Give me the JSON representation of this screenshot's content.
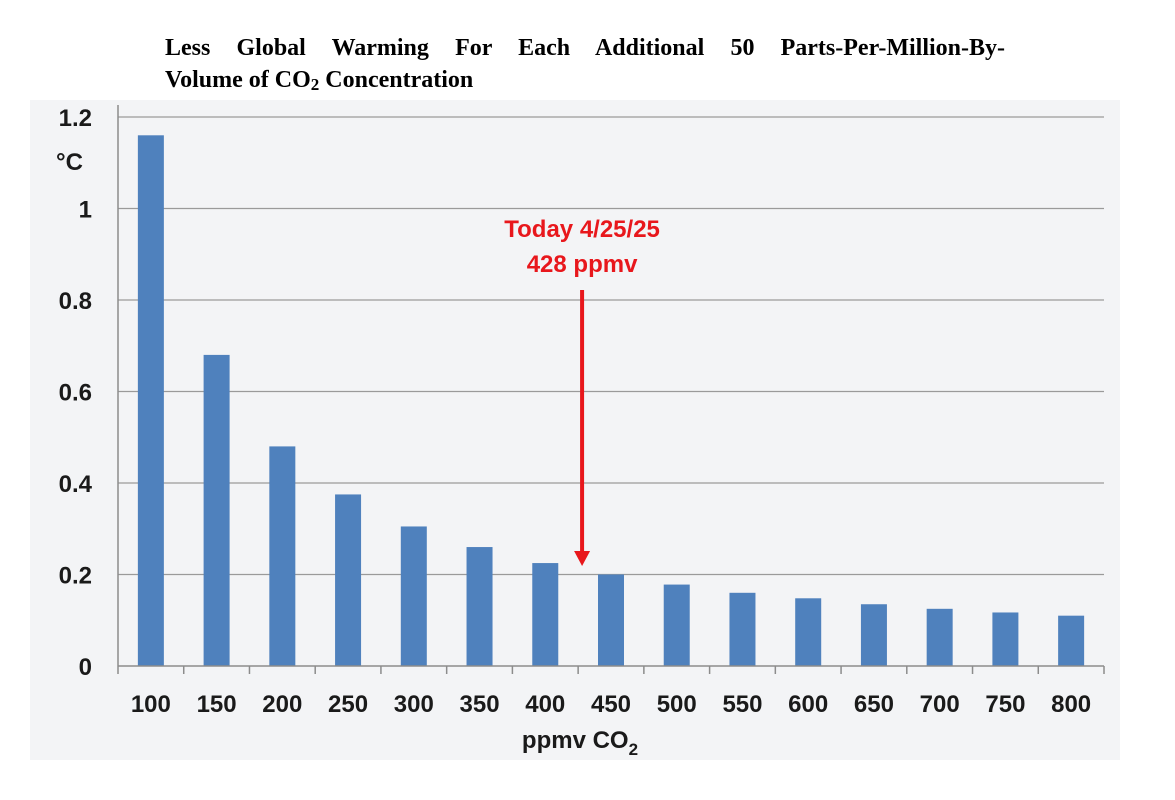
{
  "title": {
    "line1": "Less Global Warming For Each Additional 50 Parts-Per-Million-By-",
    "line2_pre": "Volume of CO",
    "line2_sub": "2",
    "line2_post": " Concentration"
  },
  "chart_data": {
    "type": "bar",
    "title": "Less Global Warming For Each Additional 50 Parts-Per-Million-By-Volume of CO2 Concentration",
    "categories": [
      "100",
      "150",
      "200",
      "250",
      "300",
      "350",
      "400",
      "450",
      "500",
      "550",
      "600",
      "650",
      "700",
      "750",
      "800"
    ],
    "values": [
      1.16,
      0.68,
      0.48,
      0.375,
      0.305,
      0.26,
      0.225,
      0.2,
      0.178,
      0.16,
      0.148,
      0.135,
      0.125,
      0.117,
      0.11
    ],
    "ylim": [
      0,
      1.2
    ],
    "yticks": [
      "0",
      "0.2",
      "0.4",
      "0.6",
      "0.8",
      "1",
      "1.2"
    ],
    "ylabel": "°C",
    "xlabel_pre": "ppmv CO",
    "xlabel_sub": "2",
    "grid": true,
    "bar_color": "#4f81bd",
    "annotation": {
      "line1": "Today 4/25/25",
      "line2": "428 ppmv",
      "x_value": 428,
      "color": "#e8171c"
    }
  }
}
